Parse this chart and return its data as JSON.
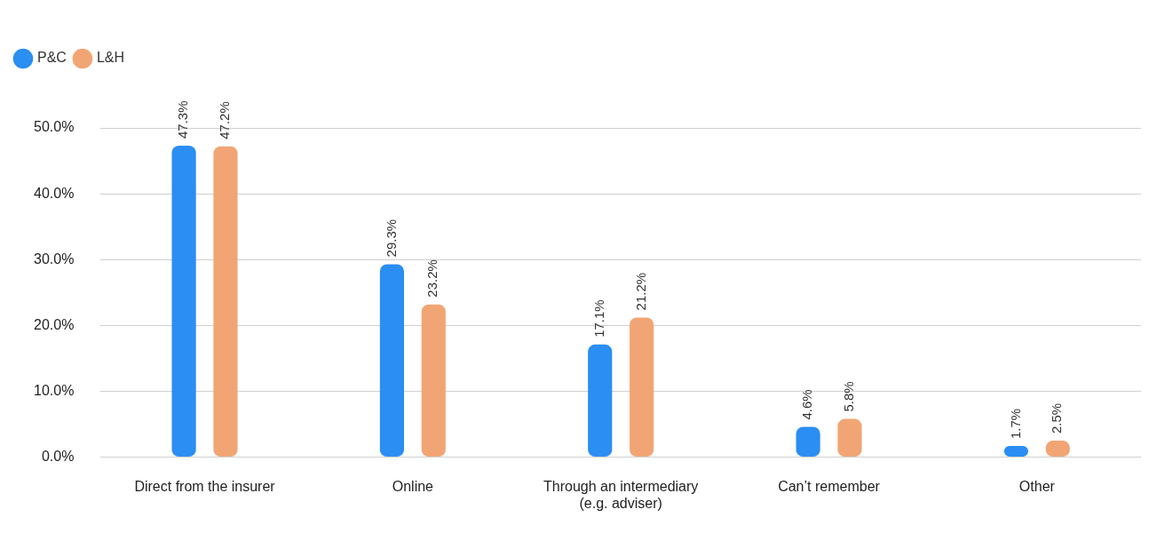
{
  "chart_data": {
    "type": "bar",
    "categories": [
      "Direct from the insurer",
      "Online",
      "Through an intermediary (e.g. adviser)",
      "Can’t remember",
      "Other"
    ],
    "series": [
      {
        "name": "P&C",
        "color": "#2a8ef2",
        "values": [
          47.3,
          29.3,
          17.1,
          4.6,
          1.7
        ],
        "value_labels": [
          "47.3%",
          "29.3%",
          "17.1%",
          "4.6%",
          "1.7%"
        ]
      },
      {
        "name": "L&H",
        "color": "#f2a574",
        "values": [
          47.2,
          23.2,
          21.2,
          5.8,
          2.5
        ],
        "value_labels": [
          "47.2%",
          "23.2%",
          "21.2%",
          "5.8%",
          "2.5%"
        ]
      }
    ],
    "ylim": [
      0,
      50
    ],
    "yticks": [
      {
        "value": 0,
        "label": "0.0%"
      },
      {
        "value": 10,
        "label": "10.0%"
      },
      {
        "value": 20,
        "label": "20.0%"
      },
      {
        "value": 30,
        "label": "30.0%"
      },
      {
        "value": 40,
        "label": "40.0%"
      },
      {
        "value": 50,
        "label": "50.0%"
      }
    ],
    "grid": "y",
    "legend": "top left"
  }
}
